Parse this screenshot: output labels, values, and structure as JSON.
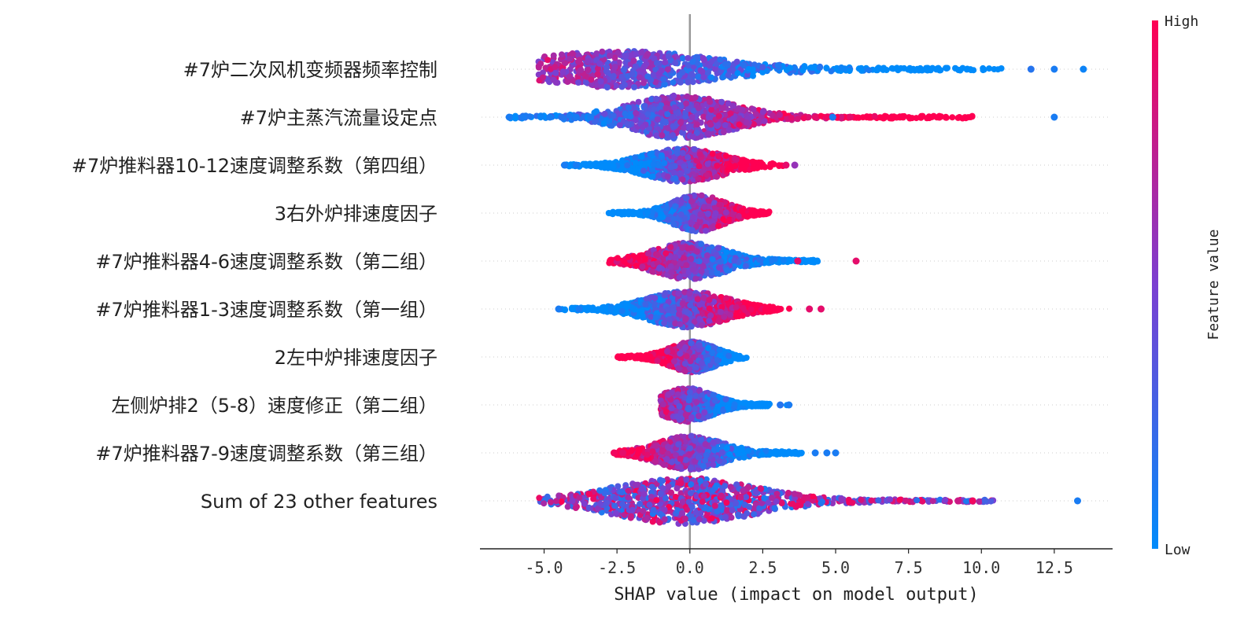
{
  "chart_data": {
    "type": "scatter",
    "subtype": "shap-beeswarm",
    "xlabel": "SHAP value (impact on model output)",
    "xlim": [
      -7.2,
      14.5
    ],
    "xticks": [
      -5.0,
      -2.5,
      0.0,
      2.5,
      5.0,
      7.5,
      10.0,
      12.5
    ],
    "xtick_labels": [
      "-5.0",
      "-2.5",
      "0.0",
      "2.5",
      "5.0",
      "7.5",
      "10.0",
      "12.5"
    ],
    "features": [
      {
        "name": "#7炉二次风机变频器频率控制",
        "min": -5.2,
        "max": 13.5,
        "center": -2.3,
        "spread": 2.8,
        "width": 22,
        "outliers": [
          {
            "x": 11.7,
            "v": 0.15
          },
          {
            "x": 12.5,
            "v": 0.1
          },
          {
            "x": 13.5,
            "v": 0.05
          }
        ],
        "hi_side": "left"
      },
      {
        "name": "#7炉主蒸汽流量设定点",
        "min": -6.2,
        "max": 12.5,
        "center": -0.3,
        "spread": 1.6,
        "width": 26,
        "outliers": [
          {
            "x": -6.2,
            "v": 0.1
          },
          {
            "x": -5.7,
            "v": 0.1
          },
          {
            "x": -4.8,
            "v": 0.1
          },
          {
            "x": -4.4,
            "v": 0.15
          },
          {
            "x": -3.9,
            "v": 0.1
          },
          {
            "x": -3.4,
            "v": 0.1
          },
          {
            "x": 4.3,
            "v": 0.9
          },
          {
            "x": 4.7,
            "v": 0.95
          },
          {
            "x": 4.9,
            "v": 0.1
          },
          {
            "x": 5.5,
            "v": 0.9
          },
          {
            "x": 12.5,
            "v": 0.1
          }
        ],
        "hi_side": "right"
      },
      {
        "name": "#7炉推料器10-12速度调整系数（第四组）",
        "min": -4.3,
        "max": 3.7,
        "center": -0.2,
        "spread": 1.2,
        "width": 20,
        "outliers": [
          {
            "x": -4.3,
            "v": 0.1
          },
          {
            "x": -3.9,
            "v": 0.1
          },
          {
            "x": 3.6,
            "v": 0.6
          },
          {
            "x": 3.3,
            "v": 0.9
          }
        ],
        "hi_side": "right"
      },
      {
        "name": "3右外炉排速度因子",
        "min": -2.8,
        "max": 3.7,
        "center": 0.3,
        "spread": 0.8,
        "width": 22,
        "outliers": [],
        "hi_side": "right"
      },
      {
        "name": "#7炉推料器4-6速度调整系数（第二组）",
        "min": -2.8,
        "max": 5.7,
        "center": 0.0,
        "spread": 1.1,
        "width": 22,
        "outliers": [
          {
            "x": 3.7,
            "v": 0.9
          },
          {
            "x": 5.7,
            "v": 0.9
          }
        ],
        "hi_side": "left"
      },
      {
        "name": "#7炉推料器1-3速度调整系数（第一组）",
        "min": -4.5,
        "max": 4.5,
        "center": -0.1,
        "spread": 1.2,
        "width": 22,
        "outliers": [
          {
            "x": -4.5,
            "v": 0.1
          },
          {
            "x": -3.8,
            "v": 0.1
          },
          {
            "x": 4.1,
            "v": 0.9
          },
          {
            "x": 4.5,
            "v": 0.9
          }
        ],
        "hi_side": "right"
      },
      {
        "name": "2左中炉排速度因子",
        "min": -2.5,
        "max": 2.0,
        "center": 0.1,
        "spread": 0.7,
        "width": 18,
        "outliers": [],
        "hi_side": "left"
      },
      {
        "name": "左侧炉排2（5-8）速度修正（第二组）",
        "min": -1.0,
        "max": 3.4,
        "center": -0.1,
        "spread": 0.8,
        "width": 20,
        "outliers": [
          {
            "x": 3.1,
            "v": 0.15
          },
          {
            "x": 3.4,
            "v": 0.1
          }
        ],
        "hi_side": "left"
      },
      {
        "name": "#7炉推料器7-9速度调整系数（第三组）",
        "min": -2.6,
        "max": 5.0,
        "center": 0.0,
        "spread": 1.0,
        "width": 20,
        "outliers": [
          {
            "x": -2.6,
            "v": 0.95
          },
          {
            "x": -2.3,
            "v": 0.9
          },
          {
            "x": 4.3,
            "v": 0.1
          },
          {
            "x": 4.7,
            "v": 0.1
          },
          {
            "x": 5.0,
            "v": 0.1
          }
        ],
        "hi_side": "left"
      },
      {
        "name": "Sum of 23 other features",
        "min": -5.2,
        "max": 13.3,
        "center": -0.2,
        "spread": 2.2,
        "width": 28,
        "outliers": [
          {
            "x": 9.2,
            "v": 0.8
          },
          {
            "x": 9.7,
            "v": 0.95
          },
          {
            "x": 13.3,
            "v": 0.1
          }
        ],
        "hi_side": "mixed"
      }
    ],
    "colorbar": {
      "label": "Feature value",
      "high_label": "High",
      "low_label": "Low",
      "high_color": "#ff0052",
      "mid_color": "#7b3fd1",
      "low_color": "#008bfb"
    },
    "zero_line_color": "#999999",
    "grid": false,
    "row_guides": "dotted"
  }
}
